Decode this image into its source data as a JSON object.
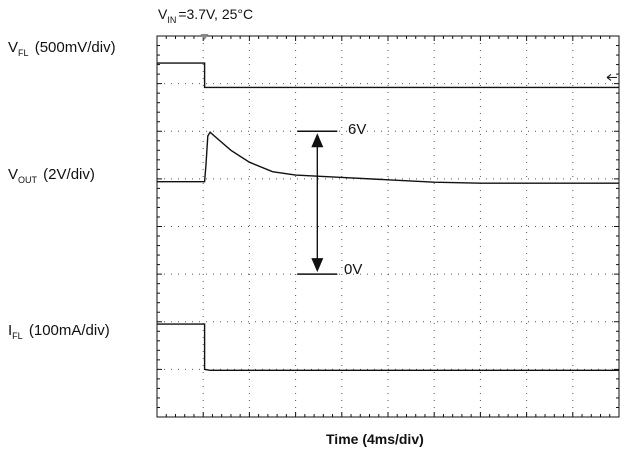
{
  "conditions": {
    "v": "V",
    "sub": "IN",
    "rest": "=3.7V, 25°C"
  },
  "channels": [
    {
      "v": "V",
      "sub": "FL",
      "rest": " (500mV/div)"
    },
    {
      "v": "V",
      "sub": "OUT",
      "rest": " (2V/div)"
    },
    {
      "v": "I",
      "sub": "FL",
      "rest": " (100mA/div)"
    }
  ],
  "xlabel": "Time (4ms/div)",
  "markers": {
    "top": "6V",
    "bottom": "0V"
  },
  "chart_data": {
    "type": "line",
    "xlabel": "Time (4ms/div)",
    "x_unit": "div",
    "y_unit": "div",
    "xlim": [
      0,
      10
    ],
    "ylim": [
      0,
      8
    ],
    "grid": true,
    "series": [
      {
        "name": "V_FL",
        "points": [
          [
            0,
            7.43
          ],
          [
            1.03,
            7.43
          ],
          [
            1.03,
            6.92
          ],
          [
            10,
            6.92
          ]
        ]
      },
      {
        "name": "V_OUT",
        "points": [
          [
            0,
            4.94
          ],
          [
            1.03,
            4.94
          ],
          [
            1.06,
            5.3
          ],
          [
            1.1,
            5.9
          ],
          [
            1.15,
            5.98
          ],
          [
            1.3,
            5.85
          ],
          [
            1.6,
            5.6
          ],
          [
            2.0,
            5.35
          ],
          [
            2.5,
            5.15
          ],
          [
            3.0,
            5.08
          ],
          [
            4.0,
            5.03
          ],
          [
            5.0,
            4.98
          ],
          [
            6.0,
            4.93
          ],
          [
            7.0,
            4.91
          ],
          [
            8.0,
            4.91
          ],
          [
            9.0,
            4.91
          ],
          [
            10,
            4.91
          ]
        ]
      },
      {
        "name": "I_FL",
        "points": [
          [
            0,
            1.95
          ],
          [
            1.0,
            1.95
          ],
          [
            1.03,
            1.95
          ],
          [
            1.03,
            1.0
          ],
          [
            1.15,
            0.98
          ],
          [
            10,
            0.98
          ]
        ]
      }
    ]
  }
}
